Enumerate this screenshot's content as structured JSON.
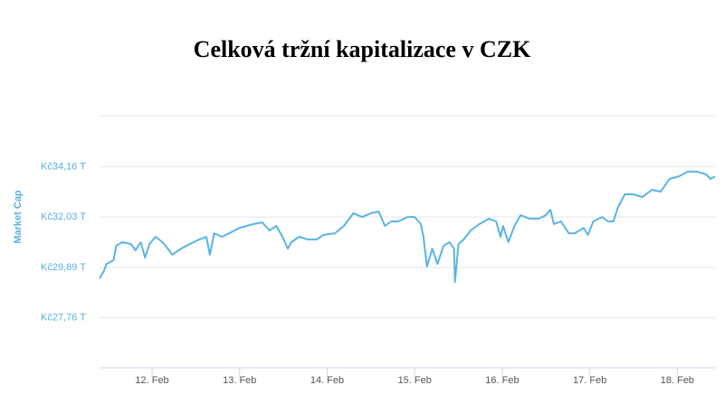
{
  "chart_data": {
    "type": "line",
    "title": "Celková tržní kapitalizace v CZK",
    "y_label": "Market Cap",
    "x": [
      11.4,
      11.45,
      11.48,
      11.56,
      11.59,
      11.66,
      11.76,
      11.81,
      11.87,
      11.92,
      11.97,
      12.04,
      12.12,
      12.18,
      12.23,
      12.33,
      12.43,
      12.54,
      12.62,
      12.66,
      12.71,
      12.8,
      12.9,
      13.0,
      13.16,
      13.26,
      13.34,
      13.42,
      13.49,
      13.55,
      13.59,
      13.68,
      13.78,
      13.88,
      13.96,
      14.09,
      14.19,
      14.3,
      14.4,
      14.5,
      14.59,
      14.66,
      14.73,
      14.81,
      14.92,
      15.0,
      15.07,
      15.1,
      15.14,
      15.2,
      15.26,
      15.33,
      15.4,
      15.45,
      15.46,
      15.5,
      15.56,
      15.64,
      15.74,
      15.85,
      15.93,
      15.98,
      16.01,
      16.07,
      16.14,
      16.21,
      16.31,
      16.42,
      16.5,
      16.55,
      16.59,
      16.67,
      16.76,
      16.83,
      16.93,
      16.98,
      17.04,
      17.14,
      17.21,
      17.27,
      17.32,
      17.4,
      17.5,
      17.6,
      17.71,
      17.81,
      17.86,
      17.91,
      18.02,
      18.12,
      18.23,
      18.33,
      18.38,
      18.43
    ],
    "series": [
      {
        "name": "Market Cap",
        "color": "#5ab4e5",
        "values": [
          29.43,
          29.74,
          30.04,
          30.2,
          30.81,
          30.96,
          30.88,
          30.62,
          30.96,
          30.31,
          30.88,
          31.19,
          30.96,
          30.69,
          30.43,
          30.69,
          30.88,
          31.08,
          31.19,
          30.43,
          31.34,
          31.19,
          31.38,
          31.57,
          31.73,
          31.8,
          31.46,
          31.65,
          31.19,
          30.69,
          30.96,
          31.19,
          31.08,
          31.08,
          31.27,
          31.34,
          31.65,
          32.19,
          32.03,
          32.19,
          32.26,
          31.65,
          31.84,
          31.84,
          32.03,
          32.03,
          31.73,
          31.19,
          29.93,
          30.69,
          30.04,
          30.81,
          30.96,
          30.69,
          29.28,
          30.88,
          31.08,
          31.46,
          31.73,
          31.96,
          31.84,
          31.19,
          31.65,
          30.96,
          31.65,
          32.11,
          31.96,
          31.96,
          32.11,
          32.34,
          31.73,
          31.84,
          31.34,
          31.34,
          31.57,
          31.27,
          31.84,
          32.03,
          31.84,
          31.84,
          32.42,
          32.99,
          32.99,
          32.87,
          33.18,
          33.1,
          33.37,
          33.64,
          33.75,
          33.95,
          33.95,
          33.83,
          33.64,
          33.75
        ]
      }
    ],
    "xlim": [
      11.4,
      18.43
    ],
    "xticks": [
      {
        "value": 12,
        "label": "12. Feb"
      },
      {
        "value": 13,
        "label": "13. Feb"
      },
      {
        "value": 14,
        "label": "14. Feb"
      },
      {
        "value": 15,
        "label": "15. Feb"
      },
      {
        "value": 16,
        "label": "16. Feb"
      },
      {
        "value": 17,
        "label": "17. Feb"
      },
      {
        "value": 18,
        "label": "18. Feb"
      }
    ],
    "ylim": [
      25.64,
      36.32
    ],
    "yticks": [
      {
        "value": 27.76,
        "label": "Kč27,76 T"
      },
      {
        "value": 29.89,
        "label": "Kč29,89 T"
      },
      {
        "value": 32.03,
        "label": "Kč32,03 T"
      },
      {
        "value": 34.16,
        "label": "Kč34,16 T"
      }
    ],
    "grid": true
  }
}
